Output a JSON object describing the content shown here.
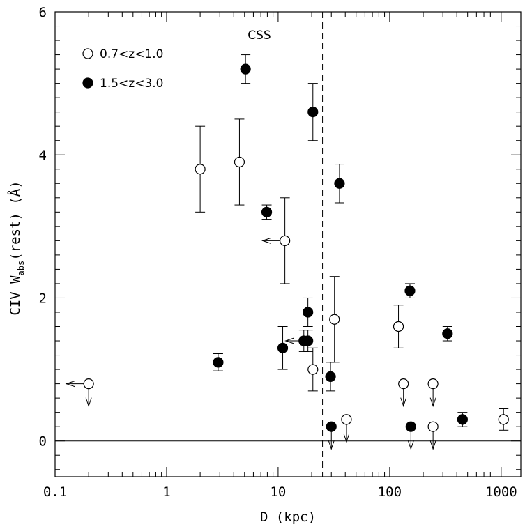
{
  "chart_data": {
    "type": "scatter",
    "title": "",
    "xlabel": "D (kpc)",
    "ylabel": {
      "prefix": "CIV W",
      "subscript": "abs",
      "suffix": "(rest)  (Å)"
    },
    "xscale": "log",
    "xlim": [
      0.1,
      1500
    ],
    "ylim": [
      -0.5,
      6
    ],
    "xticks": [
      {
        "value": 0.1,
        "label": "0.1"
      },
      {
        "value": 1,
        "label": "1"
      },
      {
        "value": 10,
        "label": "10"
      },
      {
        "value": 100,
        "label": "100"
      },
      {
        "value": 1000,
        "label": "1000"
      }
    ],
    "yticks": [
      {
        "value": 0,
        "label": "0"
      },
      {
        "value": 2,
        "label": "2"
      },
      {
        "value": 4,
        "label": "4"
      },
      {
        "value": 6,
        "label": "6"
      }
    ],
    "hline": 0,
    "vline": {
      "x": 25,
      "label": "CSS"
    },
    "legend_position": "top-left",
    "series": [
      {
        "name": "0.7<z<1.0",
        "marker": "open-circle",
        "points": [
          {
            "x": 0.2,
            "y": 0.8,
            "upper_limit": true,
            "x_upper_limit": true
          },
          {
            "x": 2.0,
            "y": 3.8,
            "yerr_low": 0.6,
            "yerr_high": 0.6
          },
          {
            "x": 4.5,
            "y": 3.9,
            "yerr_low": 0.6,
            "yerr_high": 0.6
          },
          {
            "x": 11.5,
            "y": 2.8,
            "yerr_low": 0.6,
            "yerr_high": 0.6,
            "x_upper_limit": true
          },
          {
            "x": 20.5,
            "y": 1.0,
            "yerr_low": 0.3,
            "yerr_high": 0.3
          },
          {
            "x": 32,
            "y": 1.7,
            "yerr_low": 0.6,
            "yerr_high": 0.6
          },
          {
            "x": 41,
            "y": 0.3,
            "upper_limit": true
          },
          {
            "x": 120,
            "y": 1.6,
            "yerr_low": 0.3,
            "yerr_high": 0.3
          },
          {
            "x": 133,
            "y": 0.8,
            "upper_limit": true
          },
          {
            "x": 245,
            "y": 0.8,
            "upper_limit": true
          },
          {
            "x": 245,
            "y": 0.2,
            "upper_limit": true
          },
          {
            "x": 1050,
            "y": 0.3,
            "yerr_low": 0.15,
            "yerr_high": 0.15
          }
        ]
      },
      {
        "name": "1.5<z<3.0",
        "marker": "filled-circle",
        "points": [
          {
            "x": 2.9,
            "y": 1.1,
            "yerr_low": 0.12,
            "yerr_high": 0.12
          },
          {
            "x": 5.1,
            "y": 5.2,
            "yerr_low": 0.2,
            "yerr_high": 0.2
          },
          {
            "x": 7.9,
            "y": 3.2,
            "yerr_low": 0.1,
            "yerr_high": 0.1
          },
          {
            "x": 11,
            "y": 1.3,
            "yerr_low": 0.3,
            "yerr_high": 0.3
          },
          {
            "x": 17,
            "y": 1.4,
            "yerr_low": 0.15,
            "yerr_high": 0.15
          },
          {
            "x": 18.5,
            "y": 1.4,
            "yerr_low": 0.15,
            "yerr_high": 0.15,
            "x_upper_limit": true
          },
          {
            "x": 18.5,
            "y": 1.8,
            "yerr_low": 0.2,
            "yerr_high": 0.2
          },
          {
            "x": 20.5,
            "y": 4.6,
            "yerr_low": 0.4,
            "yerr_high": 0.4
          },
          {
            "x": 29.5,
            "y": 0.9,
            "yerr_low": 0.2,
            "yerr_high": 0.2
          },
          {
            "x": 30,
            "y": 0.2,
            "upper_limit": true
          },
          {
            "x": 35.5,
            "y": 3.6,
            "yerr_low": 0.27,
            "yerr_high": 0.27
          },
          {
            "x": 155,
            "y": 0.2,
            "upper_limit": true
          },
          {
            "x": 152,
            "y": 2.1,
            "yerr_low": 0.1,
            "yerr_high": 0.1
          },
          {
            "x": 330,
            "y": 1.5,
            "yerr_low": 0.1,
            "yerr_high": 0.1
          },
          {
            "x": 450,
            "y": 0.3,
            "yerr_low": 0.1,
            "yerr_high": 0.1
          }
        ]
      }
    ]
  }
}
